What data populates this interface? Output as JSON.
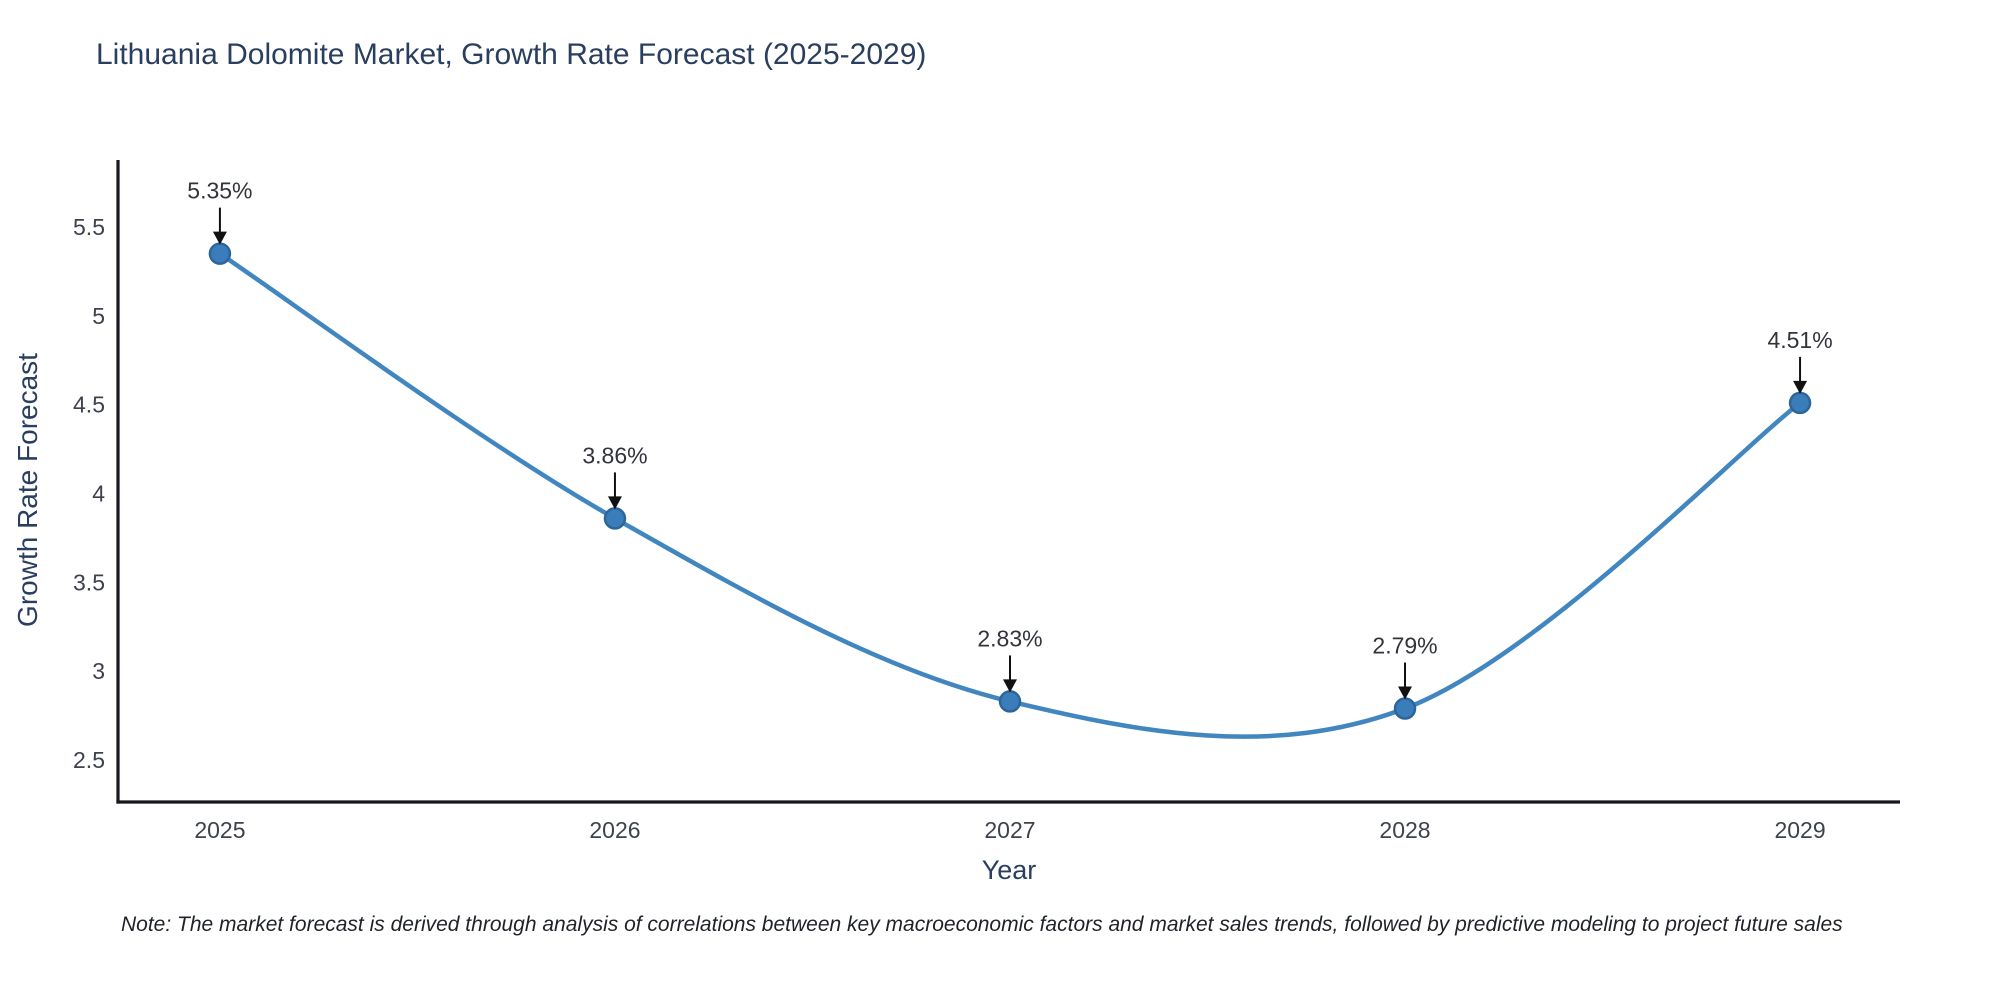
{
  "title": "Lithuania Dolomite Market, Growth Rate Forecast (2025-2029)",
  "note": "Note: The market forecast is derived through analysis of correlations between key macroeconomic factors and market sales trends, followed by predictive modeling to project future sales",
  "chart_data": {
    "type": "line",
    "title": "Lithuania Dolomite Market, Growth Rate Forecast (2025-2029)",
    "xlabel": "Year",
    "ylabel": "Growth Rate Forecast",
    "x": [
      2025,
      2026,
      2027,
      2028,
      2029
    ],
    "x_tick_labels": [
      "2025",
      "2026",
      "2027",
      "2028",
      "2029"
    ],
    "series": [
      {
        "name": "Growth Rate Forecast",
        "values": [
          5.35,
          3.86,
          2.83,
          2.79,
          4.51
        ]
      }
    ],
    "point_labels": [
      "5.35%",
      "3.86%",
      "2.83%",
      "2.79%",
      "4.51%"
    ],
    "y_ticks": [
      2.5,
      3,
      3.5,
      4,
      4.5,
      5,
      5.5
    ],
    "y_tick_labels": [
      "2.5",
      "3",
      "3.5",
      "4",
      "4.5",
      "5",
      "5.5"
    ],
    "x_range": [
      2024.742,
      2029.253
    ],
    "y_range": [
      2.264,
      5.877
    ],
    "line_shape": "spline",
    "grid": false,
    "legend_position": "none",
    "colors": {
      "line": "#4286c0",
      "marker_fill": "#3a7dba",
      "marker_edge": "#2d659b",
      "axis": "#16181d",
      "tick_label": "#3d424c",
      "title": "#2a3f5f",
      "annotation_text": "#31343a",
      "arrow": "#111111",
      "note_text": "#1f2229",
      "background": "#ffffff"
    }
  }
}
